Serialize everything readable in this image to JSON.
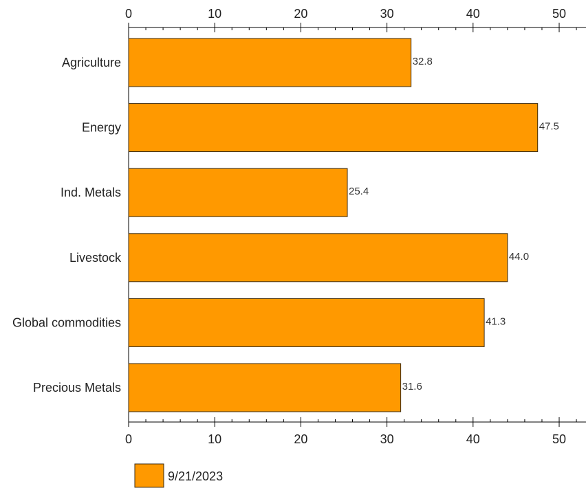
{
  "chart_data": {
    "type": "bar",
    "orientation": "horizontal",
    "categories": [
      "Agriculture",
      "Energy",
      "Ind. Metals",
      "Livestock",
      "Global commodities",
      "Precious Metals"
    ],
    "series": [
      {
        "name": "9/21/2023",
        "values": [
          32.8,
          47.5,
          25.4,
          44.0,
          41.3,
          31.6
        ],
        "color": "#FF9900"
      }
    ],
    "xlim": [
      0,
      50
    ],
    "ticks": [
      0,
      10,
      20,
      30,
      40,
      50
    ],
    "tick_labels": [
      "0",
      "10",
      "20",
      "30",
      "40",
      "50"
    ],
    "data_labels": [
      "32.8",
      "47.5",
      "25.4",
      "44.0",
      "41.3",
      "31.6"
    ],
    "axes_shown": [
      "top",
      "bottom",
      "left"
    ],
    "grid": false,
    "legend_position": "bottom-left"
  }
}
